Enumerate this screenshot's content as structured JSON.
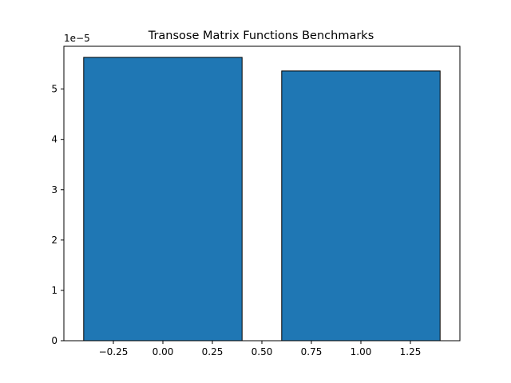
{
  "chart_data": {
    "type": "bar",
    "title": "Transose Matrix Functions Benchmarks",
    "xlabel": "",
    "ylabel": "",
    "y_scale_label": "1e−5",
    "xlim": [
      -0.5,
      1.5
    ],
    "ylim": [
      0,
      5.85
    ],
    "x_ticks": [
      -0.25,
      0.0,
      0.25,
      0.5,
      0.75,
      1.0,
      1.25
    ],
    "x_tick_labels": [
      "−0.25",
      "0.00",
      "0.25",
      "0.50",
      "0.75",
      "1.00",
      "1.25"
    ],
    "y_ticks": [
      0,
      1,
      2,
      3,
      4,
      5
    ],
    "y_tick_labels": [
      "0",
      "1",
      "2",
      "3",
      "4",
      "5"
    ],
    "bars": [
      {
        "x": 0,
        "width": 0.8,
        "value": 5.63
      },
      {
        "x": 1,
        "width": 0.8,
        "value": 5.36
      }
    ],
    "grid": false,
    "legend": "none",
    "bar_color": "#1f77b4",
    "edge_color": "#000000"
  }
}
